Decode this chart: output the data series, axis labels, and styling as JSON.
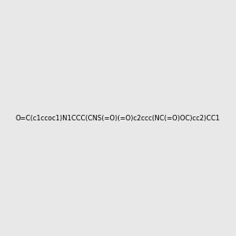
{
  "smiles": "O=C(c1ccoc1)N1CCC(CNS(=O)(=O)c2ccc(NC(=O)OC)cc2)CC1",
  "image_size": 300,
  "background_color": "#e8e8e8"
}
